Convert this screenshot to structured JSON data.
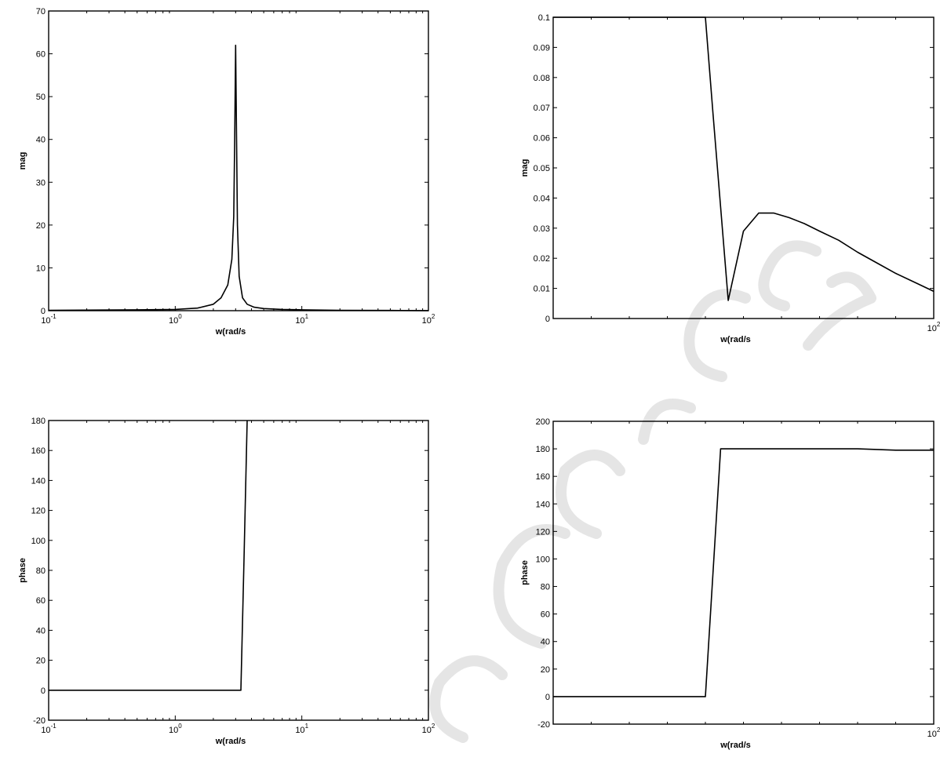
{
  "chart_data": [
    {
      "type": "line",
      "xlabel": "w(rad/s",
      "ylabel": "mag",
      "xscale": "log",
      "xlim": [
        0.1,
        100
      ],
      "ylim": [
        0,
        70
      ],
      "xticks": [
        {
          "v": 0.1,
          "b": "10",
          "e": "-1"
        },
        {
          "v": 1,
          "b": "10",
          "e": "0"
        },
        {
          "v": 10,
          "b": "10",
          "e": "1"
        },
        {
          "v": 100,
          "b": "10",
          "e": "2"
        }
      ],
      "yticks": [
        0,
        10,
        20,
        30,
        40,
        50,
        60,
        70
      ],
      "grid": false,
      "series": [
        {
          "x": [
            0.1,
            0.5,
            1.0,
            1.5,
            2.0,
            2.3,
            2.6,
            2.8,
            2.9,
            2.95,
            3.0,
            3.05,
            3.1,
            3.2,
            3.4,
            3.7,
            4.2,
            5,
            7,
            10,
            20,
            50,
            100
          ],
          "y": [
            0.1,
            0.2,
            0.3,
            0.6,
            1.5,
            3,
            6,
            12,
            22,
            40,
            62,
            40,
            20,
            8,
            3,
            1.5,
            0.8,
            0.5,
            0.3,
            0.2,
            0.1,
            0.05,
            0.02
          ]
        }
      ]
    },
    {
      "type": "line",
      "xlabel": "w(rad/s",
      "ylabel": "mag",
      "xscale": "linear",
      "xlim": [
        0,
        100
      ],
      "ylim": [
        0,
        0.1
      ],
      "xticks": [
        {
          "v": 100,
          "b": "10",
          "e": "2"
        }
      ],
      "yticks": [
        0,
        0.01,
        0.02,
        0.03,
        0.04,
        0.05,
        0.06,
        0.07,
        0.08,
        0.09,
        0.1
      ],
      "grid": false,
      "series": [
        {
          "x": [
            0,
            5,
            10,
            20,
            30,
            40,
            42,
            46,
            50,
            54,
            58,
            62,
            66,
            70,
            75,
            80,
            85,
            90,
            95,
            100
          ],
          "y": [
            0.1,
            0.1,
            0.1,
            0.1,
            0.1,
            0.1,
            0.068,
            0.006,
            0.029,
            0.035,
            0.035,
            0.0335,
            0.0315,
            0.029,
            0.026,
            0.022,
            0.0185,
            0.015,
            0.012,
            0.009
          ]
        }
      ]
    },
    {
      "type": "line",
      "xlabel": "w(rad/s",
      "ylabel": "phase",
      "xscale": "log",
      "xlim": [
        0.1,
        100
      ],
      "ylim": [
        -20,
        180
      ],
      "xticks": [
        {
          "v": 0.1,
          "b": "10",
          "e": "-1"
        },
        {
          "v": 1,
          "b": "10",
          "e": "0"
        },
        {
          "v": 10,
          "b": "10",
          "e": "1"
        },
        {
          "v": 100,
          "b": "10",
          "e": "2"
        }
      ],
      "yticks": [
        -20,
        0,
        20,
        40,
        60,
        80,
        100,
        120,
        140,
        160,
        180
      ],
      "grid": false,
      "series": [
        {
          "x": [
            0.1,
            1,
            2,
            3.3,
            3.5,
            3.7
          ],
          "y": [
            0,
            0,
            0,
            0,
            90,
            180
          ]
        }
      ]
    },
    {
      "type": "line",
      "xlabel": "w(rad/s",
      "ylabel": "phase",
      "xscale": "linear",
      "xlim": [
        0,
        100
      ],
      "ylim": [
        -20,
        200
      ],
      "xticks": [
        {
          "v": 100,
          "b": "10",
          "e": "2"
        }
      ],
      "yticks": [
        -20,
        0,
        20,
        40,
        60,
        80,
        100,
        120,
        140,
        160,
        180,
        200
      ],
      "grid": false,
      "series": [
        {
          "x": [
            0,
            10,
            20,
            30,
            40,
            44,
            50,
            60,
            70,
            80,
            90,
            100
          ],
          "y": [
            0,
            0,
            0,
            0,
            0,
            180,
            180,
            180,
            180,
            180,
            179,
            179
          ]
        }
      ]
    }
  ]
}
